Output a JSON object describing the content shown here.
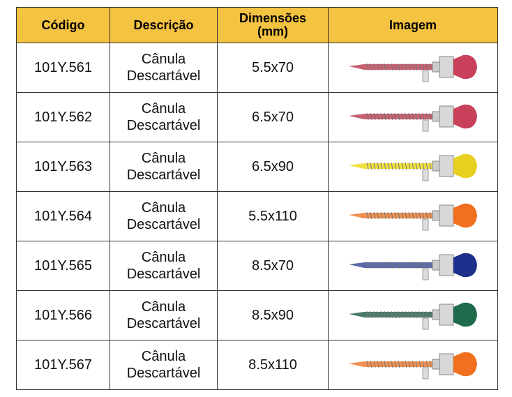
{
  "table": {
    "header": [
      "Código",
      "Descrição",
      "Dimensões (mm)",
      "Imagem"
    ],
    "rows": [
      [
        "101Y.561",
        "Cânula Descartável",
        "5.5x70"
      ],
      [
        "101Y.562",
        "Cânula Descartável",
        "6.5x70"
      ],
      [
        "101Y.563",
        "Cânula Descartável",
        "6.5x90"
      ],
      [
        "101Y.564",
        "Cânula Descartável",
        "5.5x110"
      ],
      [
        "101Y.565",
        "Cânula Descartável",
        "8.5x70"
      ],
      [
        "101Y.566",
        "Cânula Descartável",
        "8.5x90"
      ],
      [
        "101Y.567",
        "Cânula Descartável",
        "8.5x110"
      ]
    ]
  }
}
